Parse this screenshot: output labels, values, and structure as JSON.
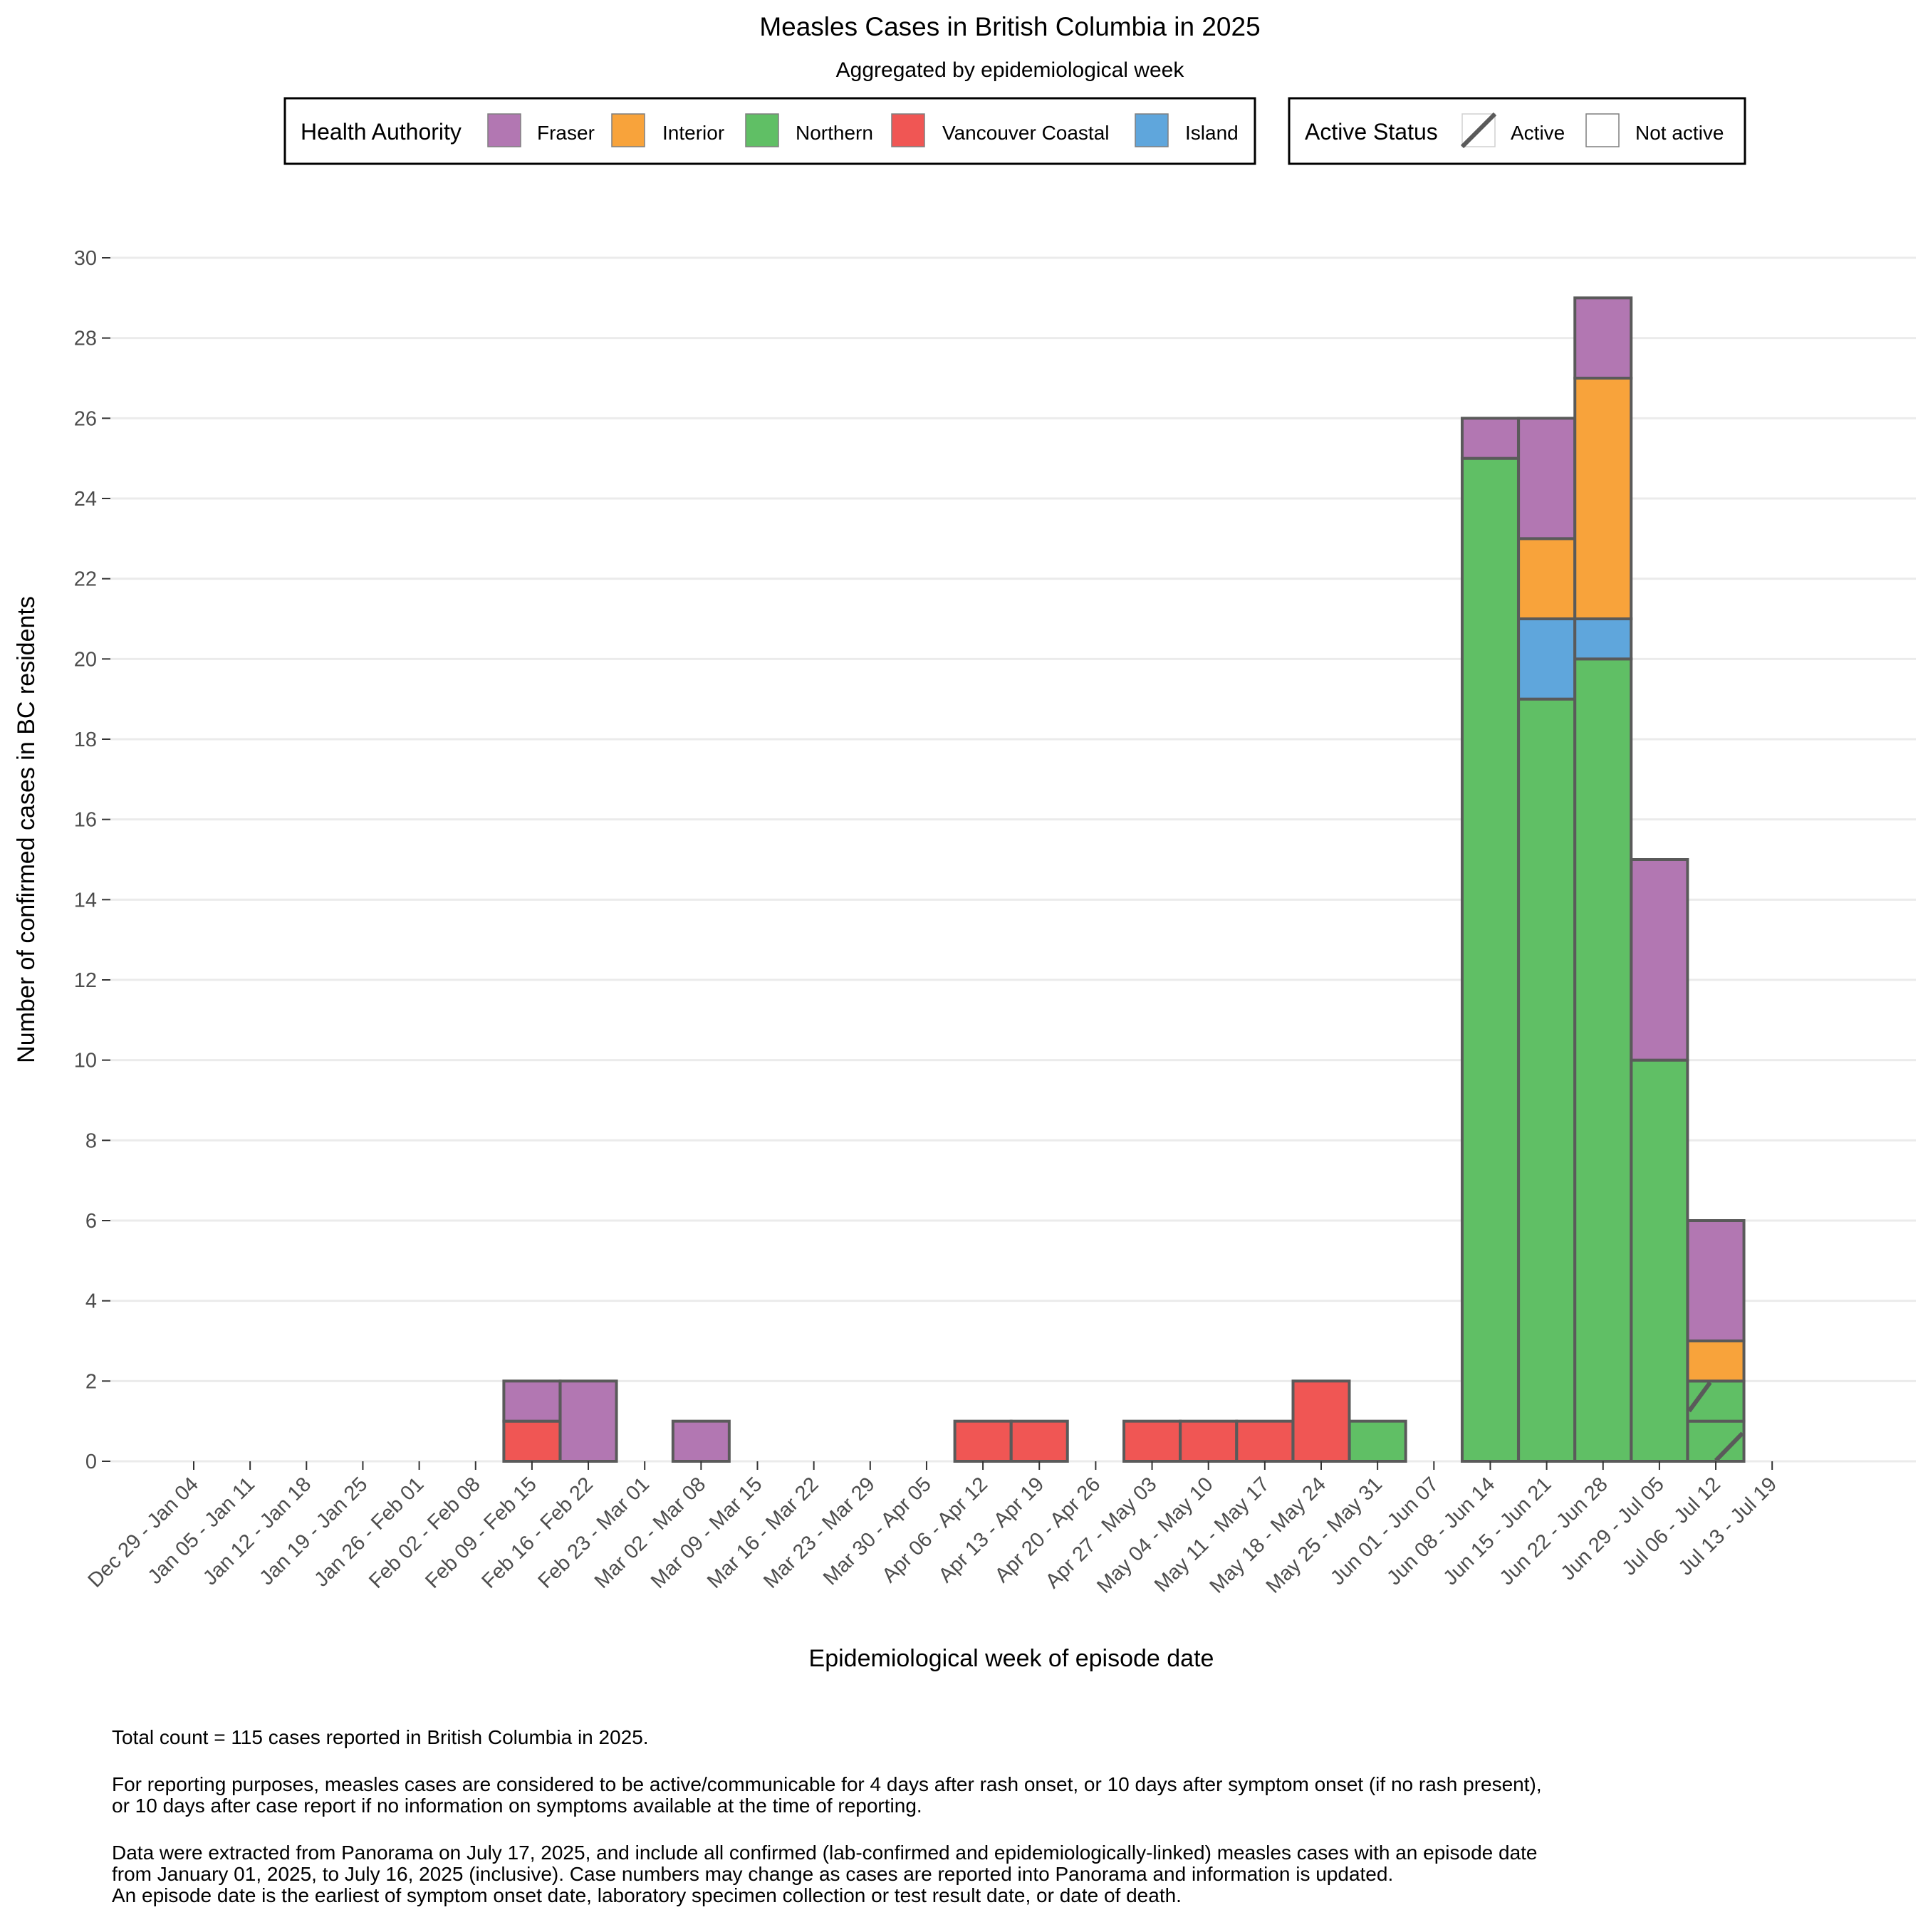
{
  "chart_data": {
    "type": "bar",
    "stacked": true,
    "title": "Measles Cases in British Columbia in 2025",
    "subtitle": "Aggregated by epidemiological week",
    "xlabel": "Epidemiological week of episode date",
    "ylabel": "Number of confirmed cases in BC residents",
    "ylim": [
      0,
      30
    ],
    "yticks": [
      0,
      2,
      4,
      6,
      8,
      10,
      12,
      14,
      16,
      18,
      20,
      22,
      24,
      26,
      28,
      30
    ],
    "grid": true,
    "categories": [
      "Dec 29 - Jan 04",
      "Jan 05 - Jan 11",
      "Jan 12 - Jan 18",
      "Jan 19 - Jan 25",
      "Jan 26 - Feb 01",
      "Feb 02 - Feb 08",
      "Feb 09 - Feb 15",
      "Feb 16 - Feb 22",
      "Feb 23 - Mar 01",
      "Mar 02 - Mar 08",
      "Mar 09 - Mar 15",
      "Mar 16 - Mar 22",
      "Mar 23 - Mar 29",
      "Mar 30 - Apr 05",
      "Apr 06 - Apr 12",
      "Apr 13 - Apr 19",
      "Apr 20 - Apr 26",
      "Apr 27 - May 03",
      "May 04 - May 10",
      "May 11 - May 17",
      "May 18 - May 24",
      "May 25 - May 31",
      "Jun 01 - Jun 07",
      "Jun 08 - Jun 14",
      "Jun 15 - Jun 21",
      "Jun 22 - Jun 28",
      "Jun 29 - Jul 05",
      "Jul 06 - Jul 12",
      "Jul 13 - Jul 19"
    ],
    "series": [
      {
        "name": "Northern",
        "color": "#60bf65",
        "values": [
          0,
          0,
          0,
          0,
          0,
          0,
          0,
          0,
          0,
          0,
          0,
          0,
          0,
          0,
          0,
          0,
          0,
          0,
          0,
          0,
          0,
          1,
          0,
          25,
          19,
          20,
          10,
          2,
          0
        ],
        "active": [
          0,
          0,
          0,
          0,
          0,
          0,
          0,
          0,
          0,
          0,
          0,
          0,
          0,
          0,
          0,
          0,
          0,
          0,
          0,
          0,
          0,
          0,
          0,
          0,
          0,
          0,
          0,
          1,
          0
        ]
      },
      {
        "name": "Vancouver Coastal",
        "color": "#f05654",
        "values": [
          0,
          0,
          0,
          0,
          0,
          0,
          1,
          0,
          0,
          0,
          0,
          0,
          0,
          0,
          1,
          1,
          0,
          1,
          1,
          1,
          2,
          0,
          0,
          0,
          0,
          0,
          0,
          0,
          0
        ],
        "active": [
          0,
          0,
          0,
          0,
          0,
          0,
          0,
          0,
          0,
          0,
          0,
          0,
          0,
          0,
          0,
          0,
          0,
          0,
          0,
          0,
          0,
          0,
          0,
          0,
          0,
          0,
          0,
          0,
          0
        ]
      },
      {
        "name": "Island",
        "color": "#5fa6dc",
        "values": [
          0,
          0,
          0,
          0,
          0,
          0,
          0,
          0,
          0,
          0,
          0,
          0,
          0,
          0,
          0,
          0,
          0,
          0,
          0,
          0,
          0,
          0,
          0,
          0,
          2,
          1,
          0,
          0,
          0
        ],
        "active": [
          0,
          0,
          0,
          0,
          0,
          0,
          0,
          0,
          0,
          0,
          0,
          0,
          0,
          0,
          0,
          0,
          0,
          0,
          0,
          0,
          0,
          0,
          0,
          0,
          0,
          0,
          0,
          0,
          0
        ]
      },
      {
        "name": "Interior",
        "color": "#f8a33b",
        "values": [
          0,
          0,
          0,
          0,
          0,
          0,
          0,
          0,
          0,
          0,
          0,
          0,
          0,
          0,
          0,
          0,
          0,
          0,
          0,
          0,
          0,
          0,
          0,
          0,
          2,
          6,
          0,
          1,
          0
        ],
        "active": [
          0,
          0,
          0,
          0,
          0,
          0,
          0,
          0,
          0,
          0,
          0,
          0,
          0,
          0,
          0,
          0,
          0,
          0,
          0,
          0,
          0,
          0,
          0,
          0,
          0,
          0,
          0,
          0,
          0
        ]
      },
      {
        "name": "Fraser",
        "color": "#b277b2",
        "values": [
          0,
          0,
          0,
          0,
          0,
          0,
          1,
          2,
          0,
          1,
          0,
          0,
          0,
          0,
          0,
          0,
          0,
          0,
          0,
          0,
          0,
          0,
          0,
          1,
          3,
          2,
          5,
          3,
          0
        ],
        "active": [
          0,
          0,
          0,
          0,
          0,
          0,
          0,
          0,
          0,
          0,
          0,
          0,
          0,
          0,
          0,
          0,
          0,
          0,
          0,
          0,
          0,
          0,
          0,
          0,
          0,
          0,
          0,
          0,
          0
        ]
      }
    ],
    "stack_order": [
      "Northern",
      "Vancouver Coastal",
      "Island",
      "Interior",
      "Fraser"
    ],
    "legends": [
      {
        "title": "Health Authority",
        "items": [
          {
            "label": "Fraser",
            "color": "#b277b2"
          },
          {
            "label": "Interior",
            "color": "#f8a33b"
          },
          {
            "label": "Northern",
            "color": "#60bf65"
          },
          {
            "label": "Vancouver Coastal",
            "color": "#f05654"
          },
          {
            "label": "Island",
            "color": "#5fa6dc"
          }
        ]
      },
      {
        "title": "Active Status",
        "items": [
          {
            "label": "Active",
            "pattern": "hatch"
          },
          {
            "label": "Not active",
            "pattern": "none"
          }
        ]
      }
    ],
    "legend_position": "top"
  },
  "footnotes": {
    "total": "Total count = 115 cases reported in British Columbia in 2025.",
    "active_line1": "For reporting purposes, measles cases are considered to be active/communicable for 4 days after rash onset, or 10 days after symptom onset (if no rash present),",
    "active_line2": "or 10 days after case report if no information on symptoms available at the time of reporting.",
    "data_line1": "Data were extracted from Panorama on July 17, 2025, and include all confirmed (lab-confirmed and epidemiologically-linked) measles cases with an episode date",
    "data_line2": "from January 01, 2025, to July 16, 2025 (inclusive). Case numbers may change as cases are reported into Panorama and information is updated.",
    "data_line3": "An episode date is the earliest of symptom onset date, laboratory specimen collection or test result date, or date of death."
  },
  "colors": {
    "outline": "#5a5a5a",
    "grid": "#ebebeb",
    "axis_text": "#4d4d4d"
  }
}
